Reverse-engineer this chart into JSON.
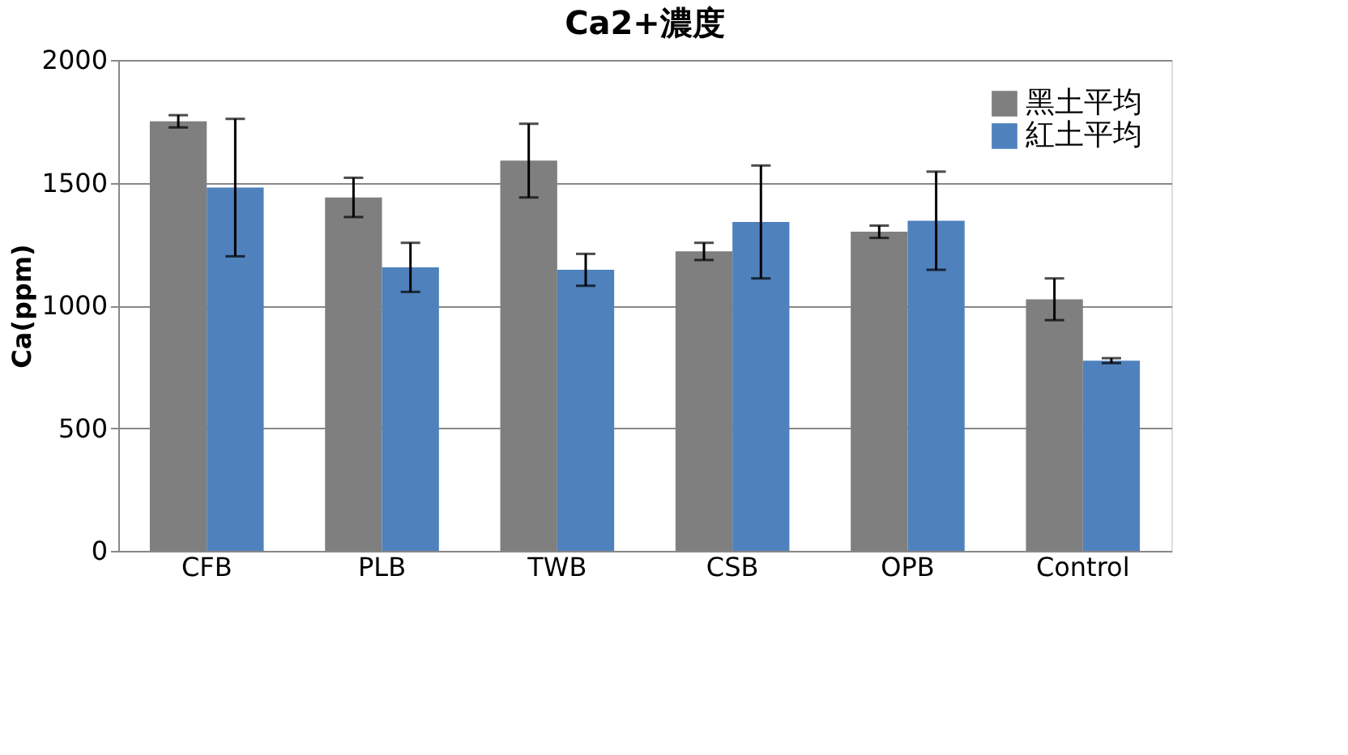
{
  "chart_data": {
    "type": "bar",
    "title": "Ca2+濃度",
    "ylabel": "Ca(ppm)",
    "categories": [
      "CFB",
      "PLB",
      "TWB",
      "CSB",
      "OPB",
      "Control"
    ],
    "series": [
      {
        "name": "黑土平均",
        "color": "#7f7f7f",
        "values": [
          1750,
          1440,
          1590,
          1220,
          1300,
          1025
        ],
        "errors": [
          25,
          80,
          150,
          35,
          25,
          85
        ]
      },
      {
        "name": "紅土平均",
        "color": "#4f81bd",
        "values": [
          1480,
          1155,
          1145,
          1340,
          1345,
          775
        ],
        "errors": [
          280,
          100,
          65,
          230,
          200,
          10
        ]
      }
    ],
    "ylim": [
      0,
      2000
    ],
    "yticks": [
      0,
      500,
      1000,
      1500,
      2000
    ],
    "grid": "y",
    "legend": "top right"
  }
}
